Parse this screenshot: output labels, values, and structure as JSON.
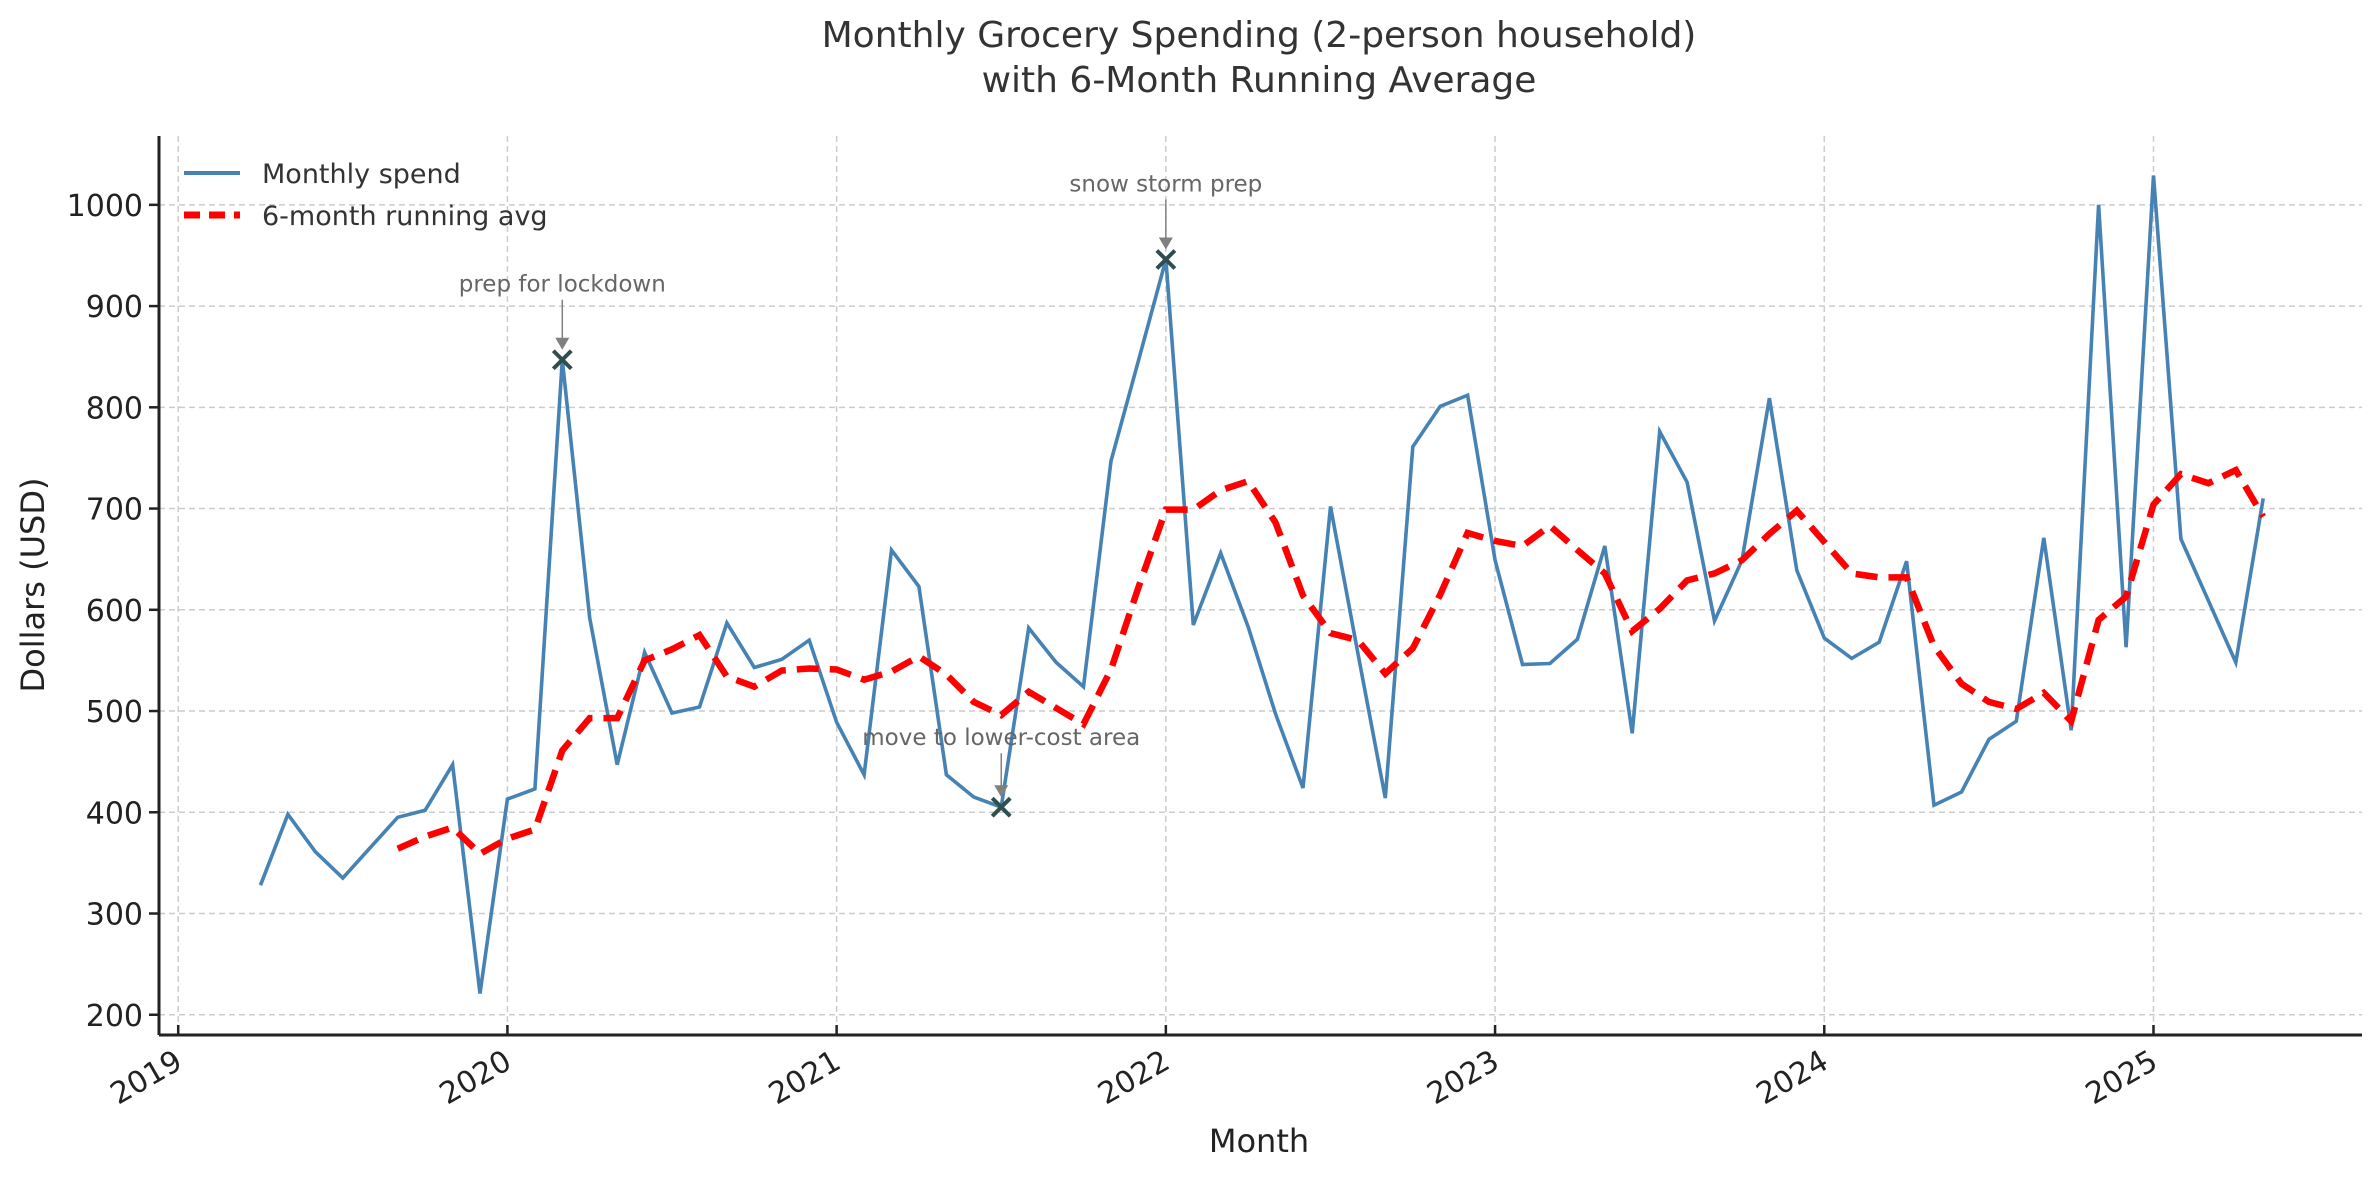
{
  "chart_data": {
    "type": "line",
    "title": "Monthly Grocery Spending (2-person household)",
    "subtitle": "with 6-Month Running Average",
    "xlabel": "Month",
    "ylabel": "Dollars (USD)",
    "ylim": [
      180,
      1068
    ],
    "xlim": [
      "2018-12",
      "2025-08"
    ],
    "grid": true,
    "legend_position": "top-left",
    "yticks": [
      200,
      300,
      400,
      500,
      600,
      700,
      800,
      900,
      1000
    ],
    "xticks": [
      "2019",
      "2020",
      "2021",
      "2022",
      "2023",
      "2024",
      "2025"
    ],
    "series": [
      {
        "name": "Monthly spend",
        "style": "solid",
        "color": "#4682B4",
        "start": "2019-04",
        "values": [
          328,
          398,
          361,
          335,
          365,
          395,
          402,
          447,
          221,
          413,
          423,
          847,
          592,
          447,
          558,
          498,
          504,
          587,
          543,
          551,
          570,
          489,
          437,
          659,
          623,
          437,
          415,
          405,
          582,
          548,
          524,
          747,
          846,
          946,
          585,
          656,
          583,
          497,
          424,
          702,
          557,
          414,
          761,
          801,
          812,
          649,
          546,
          547,
          571,
          663,
          478,
          776,
          726,
          589,
          649,
          809,
          639,
          572,
          552,
          568,
          648,
          407,
          420,
          472,
          490,
          671,
          481,
          1000,
          563,
          1029,
          670,
          609,
          548,
          710
        ]
      },
      {
        "name": "6-month running avg",
        "style": "dashed",
        "color": "#FF0000",
        "start": "2019-09",
        "values": [
          364,
          376,
          385,
          359,
          374,
          383,
          461,
          493,
          493,
          550,
          561,
          575,
          534,
          524,
          540,
          542,
          541,
          531,
          539,
          554,
          536,
          509,
          496,
          519,
          503,
          487,
          541,
          622,
          699,
          699,
          718,
          727,
          686,
          614,
          577,
          570,
          537,
          562,
          615,
          676,
          668,
          663,
          683,
          659,
          636,
          579,
          601,
          629,
          636,
          649,
          675,
          698,
          667,
          636,
          632,
          632,
          564,
          527,
          509,
          502,
          518,
          490,
          590,
          613,
          704,
          734,
          725,
          738,
          692
        ]
      }
    ],
    "annotations": [
      {
        "text": "prep for lockdown",
        "date": "2020-03",
        "value": 847
      },
      {
        "text": "move to lower-cost area",
        "date": "2021-07",
        "value": 405
      },
      {
        "text": "snow storm prep",
        "date": "2022-01",
        "value": 946
      }
    ],
    "marker_color": "#2F4F4F",
    "arrow_color": "#808080"
  }
}
